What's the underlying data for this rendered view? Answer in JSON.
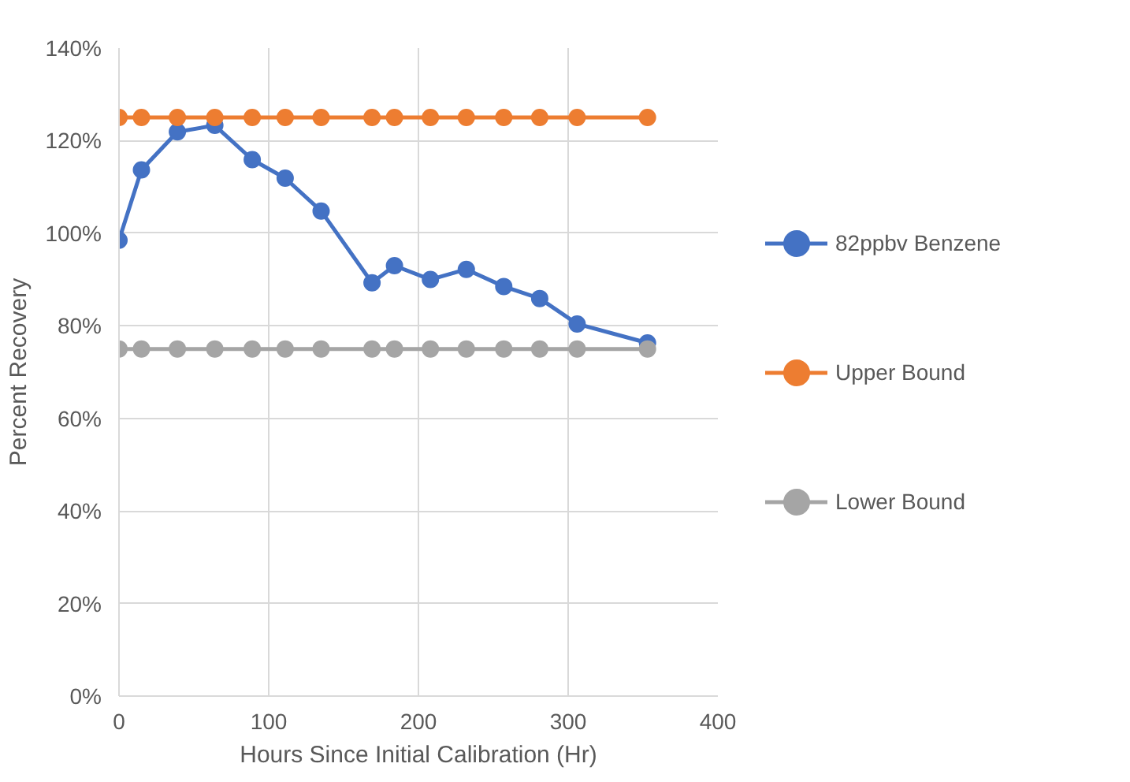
{
  "chart_data": {
    "type": "line",
    "xlabel": "Hours Since Initial Calibration (Hr)",
    "ylabel": "Percent Recovery",
    "x": [
      0,
      15,
      39,
      64,
      89,
      111,
      135,
      169,
      184,
      208,
      232,
      257,
      281,
      306,
      353
    ],
    "series": [
      {
        "name": "82ppbv Benzene",
        "color": "#4472c4",
        "values": [
          98.5,
          113.7,
          121.9,
          123.3,
          115.9,
          111.9,
          104.8,
          89.3,
          93,
          90,
          92.2,
          88.5,
          85.9,
          80.4,
          76.3
        ]
      },
      {
        "name": "Upper Bound",
        "color": "#ed7d31",
        "values": [
          125,
          125,
          125,
          125,
          125,
          125,
          125,
          125,
          125,
          125,
          125,
          125,
          125,
          125,
          125
        ]
      },
      {
        "name": "Lower Bound",
        "color": "#a5a5a5",
        "values": [
          75,
          75,
          75,
          75,
          75,
          75,
          75,
          75,
          75,
          75,
          75,
          75,
          75,
          75,
          75
        ]
      }
    ],
    "xlim": [
      0,
      400
    ],
    "xticks": [
      0,
      100,
      200,
      300,
      400
    ],
    "ylim": [
      0,
      140
    ],
    "yticks": [
      {
        "value": 0,
        "label": "0%"
      },
      {
        "value": 20,
        "label": "20%"
      },
      {
        "value": 40,
        "label": "40%"
      },
      {
        "value": 60,
        "label": "60%"
      },
      {
        "value": 80,
        "label": "80%"
      },
      {
        "value": 100,
        "label": "100%"
      },
      {
        "value": 120,
        "label": "120%"
      },
      {
        "value": 140,
        "label": "140%"
      }
    ],
    "grid": true,
    "legend": "right",
    "marker": "circle",
    "line_style": "solid"
  }
}
